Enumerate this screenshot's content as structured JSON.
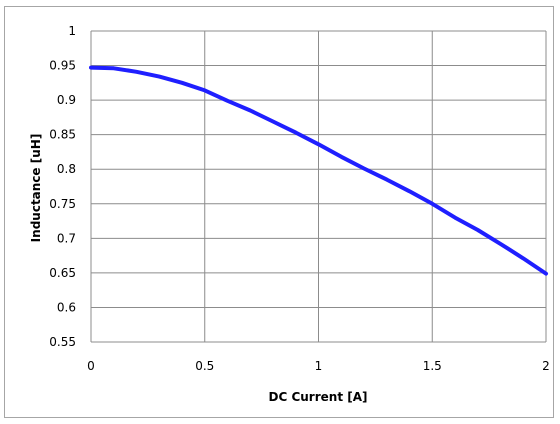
{
  "chart_data": {
    "type": "line",
    "title": "",
    "xlabel": "DC Current [A]",
    "ylabel": "Inductance  [uH]",
    "xlim": [
      0,
      2
    ],
    "ylim": [
      0.55,
      1
    ],
    "x_ticks": [
      "0",
      "0.5",
      "1",
      "1.5",
      "2"
    ],
    "y_ticks": [
      "0.55",
      "0.6",
      "0.65",
      "0.7",
      "0.75",
      "0.8",
      "0.85",
      "0.9",
      "0.95",
      "1"
    ],
    "grid": true,
    "legend": "none",
    "series": [
      {
        "color": "#1f1fff",
        "x": [
          0,
          0.1,
          0.2,
          0.3,
          0.4,
          0.5,
          0.6,
          0.7,
          0.8,
          0.9,
          1.0,
          1.1,
          1.2,
          1.3,
          1.4,
          1.5,
          1.6,
          1.7,
          1.8,
          1.9,
          2.0
        ],
        "y": [
          0.947,
          0.946,
          0.941,
          0.934,
          0.925,
          0.914,
          0.899,
          0.885,
          0.869,
          0.853,
          0.836,
          0.818,
          0.801,
          0.785,
          0.768,
          0.75,
          0.73,
          0.712,
          0.692,
          0.671,
          0.649
        ]
      }
    ]
  }
}
